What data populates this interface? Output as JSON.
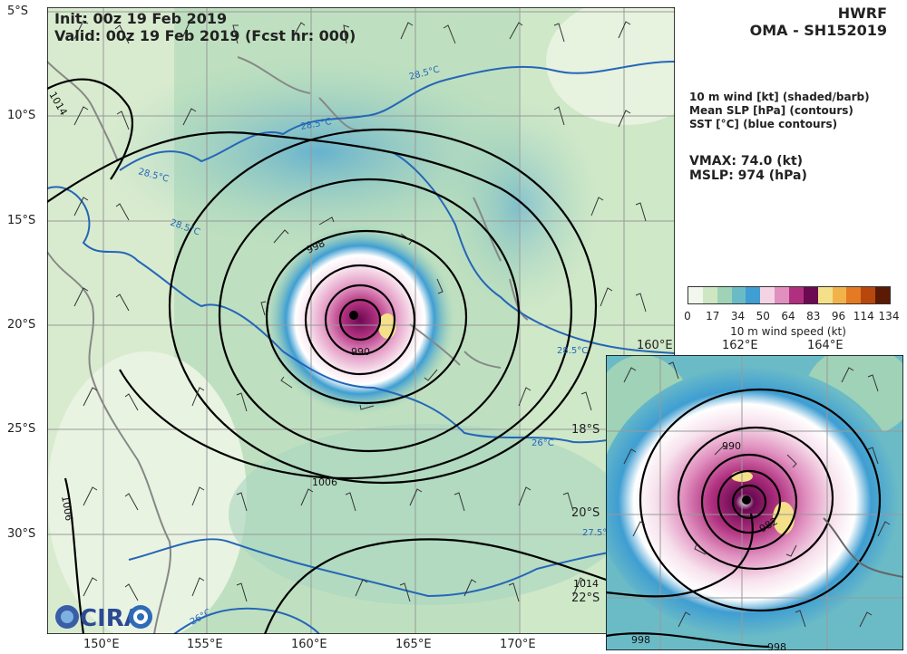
{
  "header": {
    "init": "Init:   00z 19 Feb 2019",
    "valid": "Valid: 00z 19 Feb 2019 (Fcst hr: 000)",
    "model": "HWRF",
    "storm": "OMA - SH152019"
  },
  "legend": {
    "line1": "10 m wind [kt] (shaded/barb)",
    "line2": "Mean SLP [hPa] (contours)",
    "line3": "SST [°C] (blue contours)"
  },
  "stats": {
    "vmax": "VMAX:  74.0 (kt)",
    "mslp": "MSLP:  974 (hPa)"
  },
  "colorbar": {
    "ticks": [
      "0",
      "17",
      "34",
      "50",
      "64",
      "83",
      "96",
      "114",
      "134"
    ],
    "label": "10 m wind speed (kt)",
    "colors": [
      "#f2f7ee",
      "#cfe6c2",
      "#9fd2b6",
      "#6bbbc7",
      "#3f9ed2",
      "#f4d4e4",
      "#e08fbf",
      "#b0307f",
      "#6b0a52",
      "#f5e08a",
      "#f2b24a",
      "#e47a21",
      "#b8470e",
      "#5a1a05"
    ]
  },
  "main_map": {
    "lat_labels": [
      "5°S",
      "10°S",
      "15°S",
      "20°S",
      "25°S",
      "30°S"
    ],
    "lon_labels": [
      "150°E",
      "155°E",
      "160°E",
      "165°E",
      "170°E"
    ],
    "slp_labels": [
      "998",
      "990",
      "1006",
      "1014",
      "1006",
      "1014"
    ],
    "sst_labels": [
      "28.5°C",
      "28.5°C",
      "28.5°C",
      "28.5°C",
      "28.5°C",
      "26°C",
      "27.5°C",
      "26°C"
    ]
  },
  "inset_map": {
    "lon_labels": [
      "160°E",
      "162°E",
      "164°E"
    ],
    "lat_labels": [
      "18°S",
      "20°S",
      "22°S"
    ],
    "slp_labels": [
      "990",
      "982",
      "998",
      "998"
    ]
  },
  "logo": {
    "text": "CIRA"
  }
}
